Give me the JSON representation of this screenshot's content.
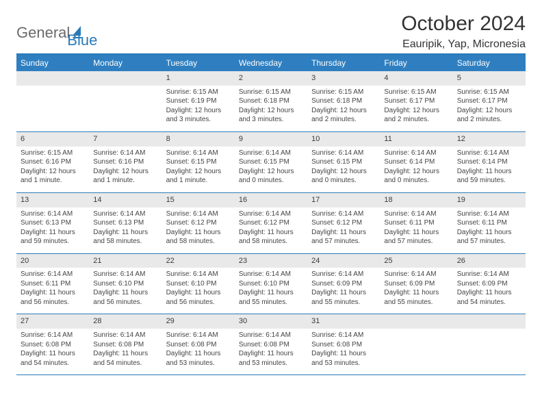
{
  "logo": {
    "text1": "General",
    "text2": "Blue"
  },
  "title": "October 2024",
  "location": "Eauripik, Yap, Micronesia",
  "colors": {
    "header_bg": "#2f7fc0",
    "border": "#2a7ab8",
    "daynum_bg": "#e9e9e9",
    "text": "#444444",
    "logo_gray": "#6a6a6a",
    "logo_blue": "#2a7ab8"
  },
  "dow": [
    "Sunday",
    "Monday",
    "Tuesday",
    "Wednesday",
    "Thursday",
    "Friday",
    "Saturday"
  ],
  "weeks": [
    [
      null,
      null,
      {
        "d": "1",
        "sr": "6:15 AM",
        "ss": "6:19 PM",
        "dl": "12 hours and 3 minutes."
      },
      {
        "d": "2",
        "sr": "6:15 AM",
        "ss": "6:18 PM",
        "dl": "12 hours and 3 minutes."
      },
      {
        "d": "3",
        "sr": "6:15 AM",
        "ss": "6:18 PM",
        "dl": "12 hours and 2 minutes."
      },
      {
        "d": "4",
        "sr": "6:15 AM",
        "ss": "6:17 PM",
        "dl": "12 hours and 2 minutes."
      },
      {
        "d": "5",
        "sr": "6:15 AM",
        "ss": "6:17 PM",
        "dl": "12 hours and 2 minutes."
      }
    ],
    [
      {
        "d": "6",
        "sr": "6:15 AM",
        "ss": "6:16 PM",
        "dl": "12 hours and 1 minute."
      },
      {
        "d": "7",
        "sr": "6:14 AM",
        "ss": "6:16 PM",
        "dl": "12 hours and 1 minute."
      },
      {
        "d": "8",
        "sr": "6:14 AM",
        "ss": "6:15 PM",
        "dl": "12 hours and 1 minute."
      },
      {
        "d": "9",
        "sr": "6:14 AM",
        "ss": "6:15 PM",
        "dl": "12 hours and 0 minutes."
      },
      {
        "d": "10",
        "sr": "6:14 AM",
        "ss": "6:15 PM",
        "dl": "12 hours and 0 minutes."
      },
      {
        "d": "11",
        "sr": "6:14 AM",
        "ss": "6:14 PM",
        "dl": "12 hours and 0 minutes."
      },
      {
        "d": "12",
        "sr": "6:14 AM",
        "ss": "6:14 PM",
        "dl": "11 hours and 59 minutes."
      }
    ],
    [
      {
        "d": "13",
        "sr": "6:14 AM",
        "ss": "6:13 PM",
        "dl": "11 hours and 59 minutes."
      },
      {
        "d": "14",
        "sr": "6:14 AM",
        "ss": "6:13 PM",
        "dl": "11 hours and 58 minutes."
      },
      {
        "d": "15",
        "sr": "6:14 AM",
        "ss": "6:12 PM",
        "dl": "11 hours and 58 minutes."
      },
      {
        "d": "16",
        "sr": "6:14 AM",
        "ss": "6:12 PM",
        "dl": "11 hours and 58 minutes."
      },
      {
        "d": "17",
        "sr": "6:14 AM",
        "ss": "6:12 PM",
        "dl": "11 hours and 57 minutes."
      },
      {
        "d": "18",
        "sr": "6:14 AM",
        "ss": "6:11 PM",
        "dl": "11 hours and 57 minutes."
      },
      {
        "d": "19",
        "sr": "6:14 AM",
        "ss": "6:11 PM",
        "dl": "11 hours and 57 minutes."
      }
    ],
    [
      {
        "d": "20",
        "sr": "6:14 AM",
        "ss": "6:11 PM",
        "dl": "11 hours and 56 minutes."
      },
      {
        "d": "21",
        "sr": "6:14 AM",
        "ss": "6:10 PM",
        "dl": "11 hours and 56 minutes."
      },
      {
        "d": "22",
        "sr": "6:14 AM",
        "ss": "6:10 PM",
        "dl": "11 hours and 56 minutes."
      },
      {
        "d": "23",
        "sr": "6:14 AM",
        "ss": "6:10 PM",
        "dl": "11 hours and 55 minutes."
      },
      {
        "d": "24",
        "sr": "6:14 AM",
        "ss": "6:09 PM",
        "dl": "11 hours and 55 minutes."
      },
      {
        "d": "25",
        "sr": "6:14 AM",
        "ss": "6:09 PM",
        "dl": "11 hours and 55 minutes."
      },
      {
        "d": "26",
        "sr": "6:14 AM",
        "ss": "6:09 PM",
        "dl": "11 hours and 54 minutes."
      }
    ],
    [
      {
        "d": "27",
        "sr": "6:14 AM",
        "ss": "6:08 PM",
        "dl": "11 hours and 54 minutes."
      },
      {
        "d": "28",
        "sr": "6:14 AM",
        "ss": "6:08 PM",
        "dl": "11 hours and 54 minutes."
      },
      {
        "d": "29",
        "sr": "6:14 AM",
        "ss": "6:08 PM",
        "dl": "11 hours and 53 minutes."
      },
      {
        "d": "30",
        "sr": "6:14 AM",
        "ss": "6:08 PM",
        "dl": "11 hours and 53 minutes."
      },
      {
        "d": "31",
        "sr": "6:14 AM",
        "ss": "6:08 PM",
        "dl": "11 hours and 53 minutes."
      },
      null,
      null
    ]
  ],
  "labels": {
    "sunrise": "Sunrise: ",
    "sunset": "Sunset: ",
    "daylight": "Daylight: "
  }
}
